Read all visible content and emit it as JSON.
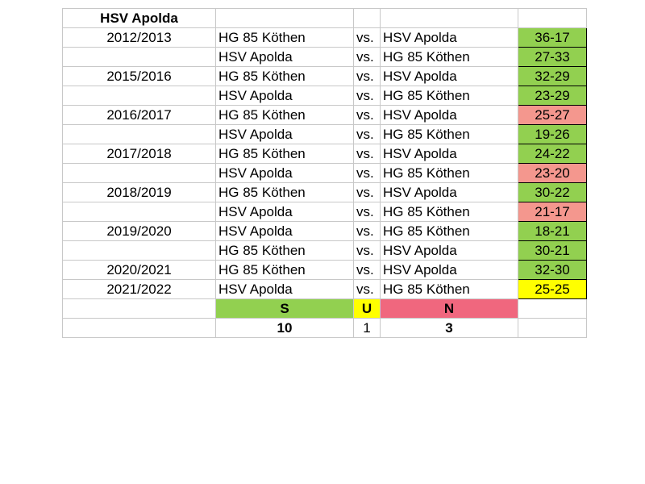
{
  "title": "HSV Apolda",
  "colors": {
    "win": "#92d050",
    "loss": "#f4978e",
    "draw": "#ffff00",
    "s_header": "#92d050",
    "u_header": "#ffff00",
    "n_header": "#f0677e"
  },
  "matches": [
    {
      "season": "2012/2013",
      "home": "HG 85 Köthen",
      "vs": "vs.",
      "away": "HSV Apolda",
      "score": "36-17",
      "result": "win"
    },
    {
      "season": "",
      "home": "HSV Apolda",
      "vs": "vs.",
      "away": "HG 85 Köthen",
      "score": "27-33",
      "result": "win"
    },
    {
      "season": "2015/2016",
      "home": "HG 85 Köthen",
      "vs": "vs.",
      "away": "HSV Apolda",
      "score": "32-29",
      "result": "win"
    },
    {
      "season": "",
      "home": "HSV Apolda",
      "vs": "vs.",
      "away": "HG 85 Köthen",
      "score": "23-29",
      "result": "win"
    },
    {
      "season": "2016/2017",
      "home": "HG 85 Köthen",
      "vs": "vs.",
      "away": "HSV Apolda",
      "score": "25-27",
      "result": "loss"
    },
    {
      "season": "",
      "home": "HSV Apolda",
      "vs": "vs.",
      "away": "HG 85 Köthen",
      "score": "19-26",
      "result": "win"
    },
    {
      "season": "2017/2018",
      "home": "HG 85 Köthen",
      "vs": "vs.",
      "away": "HSV Apolda",
      "score": "24-22",
      "result": "win"
    },
    {
      "season": "",
      "home": "HSV Apolda",
      "vs": "vs.",
      "away": "HG 85 Köthen",
      "score": "23-20",
      "result": "loss"
    },
    {
      "season": "2018/2019",
      "home": "HG 85 Köthen",
      "vs": "vs.",
      "away": "HSV Apolda",
      "score": "30-22",
      "result": "win"
    },
    {
      "season": "",
      "home": "HSV Apolda",
      "vs": "vs.",
      "away": "HG 85 Köthen",
      "score": "21-17",
      "result": "loss"
    },
    {
      "season": "2019/2020",
      "home": "HSV Apolda",
      "vs": "vs.",
      "away": "HG 85 Köthen",
      "score": "18-21",
      "result": "win"
    },
    {
      "season": "",
      "home": "HG 85 Köthen",
      "vs": "vs.",
      "away": "HSV Apolda",
      "score": "30-21",
      "result": "win"
    },
    {
      "season": "2020/2021",
      "home": "HG 85 Köthen",
      "vs": "vs.",
      "away": "HSV Apolda",
      "score": "32-30",
      "result": "win"
    },
    {
      "season": "2021/2022",
      "home": "HSV Apolda",
      "vs": "vs.",
      "away": "HG 85 Köthen",
      "score": "25-25",
      "result": "draw"
    }
  ],
  "summary": {
    "labels": {
      "s": "S",
      "u": "U",
      "n": "N"
    },
    "counts": {
      "s": "10",
      "u": "1",
      "n": "3"
    }
  }
}
